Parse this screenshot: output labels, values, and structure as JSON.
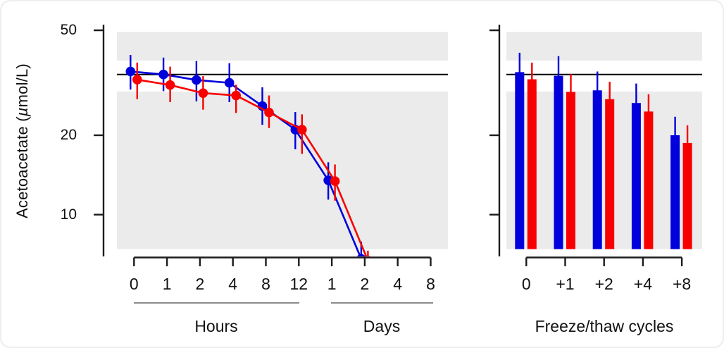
{
  "figure": {
    "y_axis_title": {
      "pre": "Acetoacetate (",
      "mu": "µ",
      "post": "mol/L)"
    },
    "colors": {
      "blue_series": "#0000dc",
      "red_series": "#f80000",
      "shading": "#ebebeb",
      "axis": "#1c1c1c",
      "group_underline": "#8c8c8c",
      "reference_line": "#000000"
    }
  },
  "chart_data": [
    {
      "type": "line",
      "panel": "stability-time-course",
      "y_scale": "log",
      "y_ticks": [
        "50",
        "20",
        "10"
      ],
      "ylim": [
        6.9,
        49.3
      ],
      "reference_line": 34,
      "unshaded_zone": [
        29.3,
        38.4
      ],
      "shaded_zone_floor": 7.4,
      "grid": false,
      "legend": "none",
      "x_groups": [
        {
          "label": "Hours",
          "ticks": [
            "0",
            "1",
            "2",
            "4",
            "8",
            "12"
          ]
        },
        {
          "label": "Days",
          "ticks": [
            "1",
            "2",
            "4",
            "8"
          ]
        }
      ],
      "series": [
        {
          "name": "blue",
          "color_key": "blue_series",
          "values": [
            34.9,
            34.0,
            32.4,
            31.6,
            25.8,
            21.0,
            13.5,
            6.8
          ],
          "err_lo": [
            29.8,
            29.4,
            26.9,
            26.7,
            21.9,
            17.7,
            11.4,
            null
          ],
          "err_hi": [
            40.3,
            39.4,
            38.2,
            37.5,
            30.4,
            24.5,
            15.8,
            7.9
          ]
        },
        {
          "name": "red",
          "color_key": "red_series",
          "values": [
            32.5,
            31.0,
            28.9,
            28.3,
            24.4,
            21.0,
            13.4,
            6.7
          ],
          "err_lo": [
            27.4,
            26.7,
            25.0,
            24.3,
            21.3,
            17.0,
            11.3,
            null
          ],
          "err_hi": [
            37.7,
            36.4,
            33.5,
            31.1,
            28.3,
            24.0,
            15.5,
            7.3
          ]
        }
      ],
      "note": "Day-2 points fall below the plotted range; traces and error bars are clipped at the axis"
    },
    {
      "type": "bar",
      "panel": "freeze-thaw",
      "xlabel": "Freeze/thaw cycles",
      "y_scale": "log",
      "y_ticks": [
        "50",
        "20",
        "10"
      ],
      "ylim": [
        6.9,
        49.3
      ],
      "reference_line": 34,
      "unshaded_zone": [
        29.3,
        38.4
      ],
      "shaded_zone_floor": 7.4,
      "grid": false,
      "legend": "none",
      "categories": [
        "0",
        "+1",
        "+2",
        "+4",
        "+8"
      ],
      "series": [
        {
          "name": "blue",
          "color_key": "blue_series",
          "values": [
            34.7,
            33.6,
            29.6,
            26.5,
            20.0
          ],
          "err_hi": [
            41.1,
            39.9,
            34.9,
            31.4,
            23.5
          ]
        },
        {
          "name": "red",
          "color_key": "red_series",
          "values": [
            32.6,
            29.2,
            27.4,
            24.6,
            18.7
          ],
          "err_hi": [
            37.7,
            34.1,
            31.9,
            28.6,
            21.8
          ]
        }
      ]
    }
  ]
}
